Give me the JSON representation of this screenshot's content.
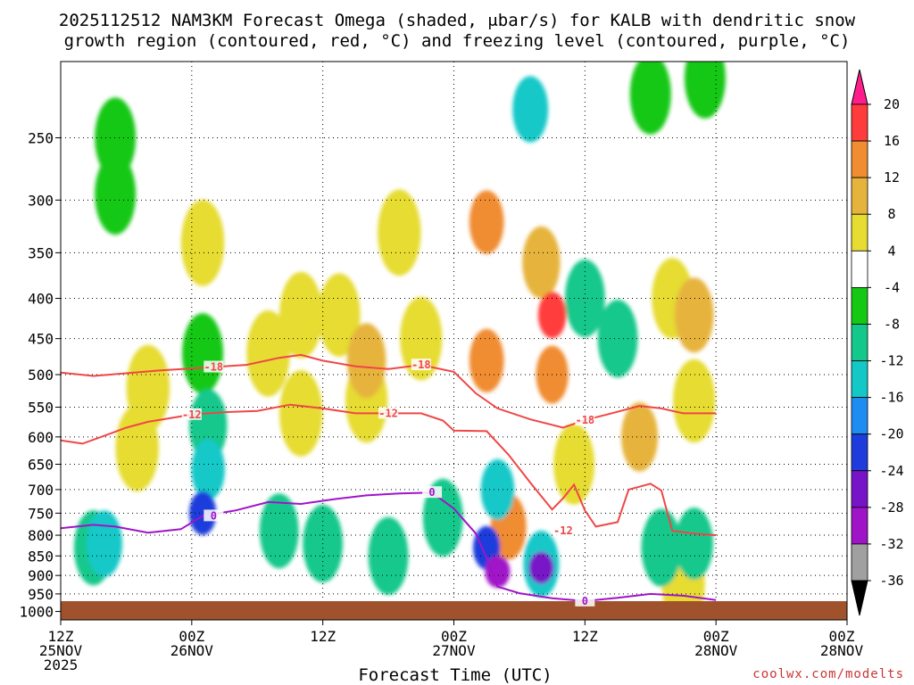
{
  "chart_data": {
    "type": "heatmap",
    "title_line1": "2025112512 NAM3KM Forecast Omega (shaded, μbar/s) for KALB with dendritic snow",
    "title_line2": "growth region (contoured, red, °C) and freezing level (contoured, purple, °C)",
    "xlabel": "Forecast Time (UTC)",
    "x_range_hours": [
      0,
      72
    ],
    "x_ticks": [
      {
        "hour": 0,
        "line1": "12Z",
        "line2": "25NOV",
        "line3": "2025"
      },
      {
        "hour": 12,
        "line1": "00Z",
        "line2": "26NOV",
        "line3": ""
      },
      {
        "hour": 24,
        "line1": "12Z",
        "line2": "",
        "line3": ""
      },
      {
        "hour": 36,
        "line1": "00Z",
        "line2": "27NOV",
        "line3": ""
      },
      {
        "hour": 48,
        "line1": "12Z",
        "line2": "",
        "line3": ""
      },
      {
        "hour": 60,
        "line1": "00Z",
        "line2": "28NOV",
        "line3": ""
      }
    ],
    "y_ticks_hpa": [
      250,
      300,
      350,
      400,
      450,
      500,
      550,
      600,
      650,
      700,
      750,
      800,
      850,
      900,
      950,
      1000
    ],
    "y_range_hpa": [
      200,
      1025
    ],
    "colorbar": {
      "labels": [
        "20",
        "16",
        "12",
        "8",
        "4",
        "-4",
        "-8",
        "-12",
        "-16",
        "-20",
        "-24",
        "-28",
        "-32",
        "-36"
      ],
      "colors": [
        "#ff1e8c",
        "#ff3c3c",
        "#f08c32",
        "#e6b43c",
        "#e6dc32",
        "#ffffff",
        "#14c814",
        "#14c88c",
        "#14c8c8",
        "#1e8cf0",
        "#1e3cdc",
        "#7814c8",
        "#a014c8",
        "#a0a0a0",
        "#000000"
      ]
    },
    "contours": {
      "dgz_minus18_label": "-18",
      "dgz_minus12_label": "-12",
      "freezing_label": "0",
      "dgz_color": "#f04646",
      "freezing_color": "#a014c8",
      "dgz_minus18": [
        [
          0,
          497
        ],
        [
          3,
          502
        ],
        [
          6,
          498
        ],
        [
          9,
          494
        ],
        [
          12,
          491
        ],
        [
          14,
          489
        ],
        [
          17,
          486
        ],
        [
          20,
          476
        ],
        [
          22,
          472
        ],
        [
          24,
          480
        ],
        [
          27,
          488
        ],
        [
          30,
          492
        ],
        [
          33,
          486
        ],
        [
          36,
          496
        ],
        [
          38,
          528
        ],
        [
          40,
          552
        ],
        [
          43,
          570
        ],
        [
          46,
          584
        ],
        [
          48,
          571
        ],
        [
          50,
          562
        ],
        [
          53,
          548
        ],
        [
          55,
          552
        ],
        [
          57,
          560
        ],
        [
          60,
          560
        ]
      ],
      "dgz_minus12": [
        [
          0,
          606
        ],
        [
          2,
          612
        ],
        [
          4,
          598
        ],
        [
          6,
          584
        ],
        [
          8,
          574
        ],
        [
          10,
          568
        ],
        [
          12,
          562
        ],
        [
          15,
          558
        ],
        [
          18,
          556
        ],
        [
          21,
          546
        ],
        [
          24,
          552
        ],
        [
          27,
          560
        ],
        [
          30,
          560
        ],
        [
          33,
          560
        ],
        [
          35,
          572
        ],
        [
          36,
          589
        ],
        [
          39,
          590
        ],
        [
          41,
          632
        ],
        [
          43,
          686
        ],
        [
          45,
          742
        ],
        [
          46,
          718
        ],
        [
          47,
          690
        ],
        [
          48,
          744
        ],
        [
          49,
          780
        ],
        [
          51,
          770
        ],
        [
          52,
          700
        ],
        [
          54,
          688
        ],
        [
          55,
          702
        ],
        [
          56,
          790
        ],
        [
          58,
          796
        ],
        [
          60,
          800
        ]
      ],
      "freezing": [
        [
          0,
          784
        ],
        [
          3,
          776
        ],
        [
          5,
          780
        ],
        [
          8,
          794
        ],
        [
          11,
          786
        ],
        [
          13,
          756
        ],
        [
          16,
          744
        ],
        [
          19,
          726
        ],
        [
          22,
          730
        ],
        [
          25,
          720
        ],
        [
          28,
          712
        ],
        [
          31,
          708
        ],
        [
          34,
          706
        ],
        [
          36,
          740
        ],
        [
          38,
          796
        ],
        [
          39,
          856
        ],
        [
          40,
          930
        ],
        [
          42,
          948
        ],
        [
          45,
          962
        ],
        [
          48,
          970
        ],
        [
          51,
          961
        ],
        [
          54,
          950
        ],
        [
          57,
          955
        ],
        [
          60,
          967
        ]
      ]
    },
    "omega_cells": [
      {
        "hour": 5,
        "p": 250,
        "v": -7
      },
      {
        "hour": 5,
        "p": 295,
        "v": -7
      },
      {
        "hour": 13,
        "p": 340,
        "v": 5
      },
      {
        "hour": 13,
        "p": 470,
        "v": -7
      },
      {
        "hour": 13.5,
        "p": 580,
        "v": -10
      },
      {
        "hour": 13.5,
        "p": 660,
        "v": -14
      },
      {
        "hour": 13,
        "p": 750,
        "v": -20
      },
      {
        "hour": 3,
        "p": 830,
        "v": -9
      },
      {
        "hour": 4,
        "p": 820,
        "v": -12
      },
      {
        "hour": 8,
        "p": 520,
        "v": 5
      },
      {
        "hour": 7,
        "p": 620,
        "v": 5
      },
      {
        "hour": 19,
        "p": 470,
        "v": 5
      },
      {
        "hour": 22,
        "p": 420,
        "v": 5
      },
      {
        "hour": 22,
        "p": 560,
        "v": 5
      },
      {
        "hour": 25.5,
        "p": 420,
        "v": 6
      },
      {
        "hour": 28,
        "p": 480,
        "v": 9
      },
      {
        "hour": 28,
        "p": 540,
        "v": 6
      },
      {
        "hour": 31,
        "p": 330,
        "v": 5
      },
      {
        "hour": 33,
        "p": 450,
        "v": 6
      },
      {
        "hour": 20,
        "p": 790,
        "v": -9
      },
      {
        "hour": 24,
        "p": 820,
        "v": -8
      },
      {
        "hour": 30,
        "p": 850,
        "v": -8
      },
      {
        "hour": 35,
        "p": 760,
        "v": -8
      },
      {
        "hour": 39,
        "p": 320,
        "v": 13
      },
      {
        "hour": 39,
        "p": 480,
        "v": 13
      },
      {
        "hour": 41,
        "p": 780,
        "v": 12
      },
      {
        "hour": 40,
        "p": 700,
        "v": -14
      },
      {
        "hour": 39,
        "p": 830,
        "v": -20
      },
      {
        "hour": 40,
        "p": 890,
        "v": -30
      },
      {
        "hour": 43,
        "p": 230,
        "v": -12
      },
      {
        "hour": 44,
        "p": 360,
        "v": 10
      },
      {
        "hour": 45,
        "p": 420,
        "v": 19
      },
      {
        "hour": 45,
        "p": 500,
        "v": 15
      },
      {
        "hour": 44,
        "p": 870,
        "v": -12
      },
      {
        "hour": 44,
        "p": 880,
        "v": -24
      },
      {
        "hour": 48,
        "p": 400,
        "v": -8
      },
      {
        "hour": 51,
        "p": 450,
        "v": -8
      },
      {
        "hour": 47,
        "p": 650,
        "v": 7
      },
      {
        "hour": 53,
        "p": 600,
        "v": 11
      },
      {
        "hour": 56,
        "p": 400,
        "v": 7
      },
      {
        "hour": 58,
        "p": 420,
        "v": 9
      },
      {
        "hour": 58,
        "p": 540,
        "v": 6
      },
      {
        "hour": 59,
        "p": 210,
        "v": -7
      },
      {
        "hour": 54,
        "p": 220,
        "v": -7
      },
      {
        "hour": 58,
        "p": 820,
        "v": -10
      },
      {
        "hour": 55,
        "p": 830,
        "v": -8
      },
      {
        "hour": 57,
        "p": 920,
        "v": 5
      }
    ]
  },
  "credit": "coolwx.com/modelts"
}
